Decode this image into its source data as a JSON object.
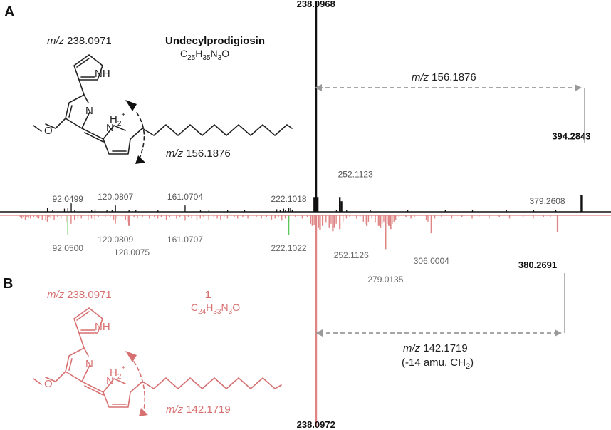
{
  "colors": {
    "top": "#111111",
    "bottom": "#e08585",
    "match": "#5cc65c",
    "guide": "#9a9a9a",
    "red_text": "#d77070"
  },
  "panels": {
    "a": "A",
    "b": "B"
  },
  "compound_a": {
    "name": "Undecylprodigiosin",
    "formula_parts": {
      "c": "C",
      "c_n": "25",
      "h": "H",
      "h_n": "35",
      "n": "N",
      "n_n": "3",
      "o": "O"
    },
    "frag1": "238.0971",
    "frag2": "156.1876",
    "mz": "m/z"
  },
  "compound_b": {
    "name": "1",
    "formula_parts": {
      "c": "C",
      "c_n": "24",
      "h": "H",
      "h_n": "33",
      "n": "N",
      "n_n": "3",
      "o": "O"
    },
    "frag1": "238.0971",
    "frag2": "142.1719",
    "mz": "m/z"
  },
  "atoms": {
    "nh": "NH",
    "n": "N",
    "h2": "H",
    "h2_sub": "2",
    "plus": "+",
    "o": "O"
  },
  "annotations": {
    "top_loss_mz": "m/z",
    "top_loss": "156.1876",
    "bottom_loss_mz": "m/z",
    "bottom_loss": "142.1719",
    "bottom_loss_note_a": "(-14 amu, CH",
    "bottom_loss_note_sub": "2",
    "bottom_loss_note_b": ")"
  },
  "chart_data": {
    "type": "bar",
    "title": "",
    "xlabel": "",
    "ylabel": "",
    "x_unit": "m/z",
    "series": [
      {
        "name": "Undecylprodigiosin",
        "direction": "up",
        "peaks": [
          {
            "mz": 80.05,
            "rel": 2.0
          },
          {
            "mz": 83.1,
            "rel": 0.8
          },
          {
            "mz": 90.05,
            "rel": 1.5
          },
          {
            "mz": 92.0499,
            "rel": 2.0,
            "label": "92.0499"
          },
          {
            "mz": 94.06,
            "rel": 4.0
          },
          {
            "mz": 96.08,
            "rel": 1.0
          },
          {
            "mz": 106.07,
            "rel": 0.8
          },
          {
            "mz": 108.08,
            "rel": 1.2
          },
          {
            "mz": 115.05,
            "rel": 0.6
          },
          {
            "mz": 118.06,
            "rel": 0.9
          },
          {
            "mz": 120.0807,
            "rel": 3.0,
            "label": "120.0807"
          },
          {
            "mz": 128.06,
            "rel": 1.0
          },
          {
            "mz": 132.08,
            "rel": 0.6
          },
          {
            "mz": 145.09,
            "rel": 0.7
          },
          {
            "mz": 161.0704,
            "rel": 3.0,
            "label": "161.0704"
          },
          {
            "mz": 170.09,
            "rel": 0.8
          },
          {
            "mz": 175.08,
            "rel": 0.7
          },
          {
            "mz": 186.09,
            "rel": 0.5
          },
          {
            "mz": 196.09,
            "rel": 0.7
          },
          {
            "mz": 215.0,
            "rel": 1.2
          },
          {
            "mz": 217.0,
            "rel": 0.8
          },
          {
            "mz": 219.1,
            "rel": 1.5
          },
          {
            "mz": 220.1,
            "rel": 1.0
          },
          {
            "mz": 222.1018,
            "rel": 2.0,
            "label": "222.1018"
          },
          {
            "mz": 223.1,
            "rel": 1.8
          },
          {
            "mz": 224.1,
            "rel": 1.0
          },
          {
            "mz": 237.09,
            "rel": 7.0
          },
          {
            "mz": 238.0968,
            "rel": 100.0,
            "label": "238.0968"
          },
          {
            "mz": 239.1,
            "rel": 7.0
          },
          {
            "mz": 250.11,
            "rel": 1.0
          },
          {
            "mz": 252.1123,
            "rel": 7.0,
            "label": "252.1123"
          },
          {
            "mz": 253.11,
            "rel": 5.0
          },
          {
            "mz": 256.12,
            "rel": 0.8
          },
          {
            "mz": 270.1,
            "rel": 0.8
          },
          {
            "mz": 292.1,
            "rel": 0.7
          },
          {
            "mz": 314.2,
            "rel": 0.6
          },
          {
            "mz": 330.2,
            "rel": 0.5
          },
          {
            "mz": 350.2,
            "rel": 0.6
          },
          {
            "mz": 366.2,
            "rel": 0.5
          },
          {
            "mz": 379.2608,
            "rel": 1.0,
            "label": "379.2608"
          },
          {
            "mz": 394.2843,
            "rel": 8.0,
            "label": "394.2843"
          }
        ]
      },
      {
        "name": "1",
        "direction": "down",
        "peaks": [
          {
            "mz": 64.0,
            "rel": 1.0
          },
          {
            "mz": 65.0,
            "rel": 1.5
          },
          {
            "mz": 66.0,
            "rel": 0.8
          },
          {
            "mz": 67.0,
            "rel": 2.0
          },
          {
            "mz": 68.0,
            "rel": 1.0
          },
          {
            "mz": 69.0,
            "rel": 1.2
          },
          {
            "mz": 70.0,
            "rel": 1.5
          },
          {
            "mz": 72.0,
            "rel": 1.0
          },
          {
            "mz": 74.0,
            "rel": 1.2
          },
          {
            "mz": 75.0,
            "rel": 1.5
          },
          {
            "mz": 77.0,
            "rel": 2.0
          },
          {
            "mz": 79.0,
            "rel": 2.5
          },
          {
            "mz": 80.0,
            "rel": 3.0
          },
          {
            "mz": 81.0,
            "rel": 1.0
          },
          {
            "mz": 82.0,
            "rel": 1.5
          },
          {
            "mz": 84.0,
            "rel": 2.0
          },
          {
            "mz": 86.0,
            "rel": 1.0
          },
          {
            "mz": 88.0,
            "rel": 1.5
          },
          {
            "mz": 91.0,
            "rel": 3.0
          },
          {
            "mz": 92.05,
            "rel": 2.5,
            "label": "92.0500"
          },
          {
            "mz": 94.0,
            "rel": 4.0
          },
          {
            "mz": 96.0,
            "rel": 2.0
          },
          {
            "mz": 98.0,
            "rel": 1.5
          },
          {
            "mz": 100.0,
            "rel": 1.5
          },
          {
            "mz": 104.0,
            "rel": 2.0
          },
          {
            "mz": 106.0,
            "rel": 1.5
          },
          {
            "mz": 108.0,
            "rel": 2.0
          },
          {
            "mz": 110.0,
            "rel": 1.0
          },
          {
            "mz": 114.0,
            "rel": 1.0
          },
          {
            "mz": 117.0,
            "rel": 1.0
          },
          {
            "mz": 119.0,
            "rel": 2.0
          },
          {
            "mz": 120.0809,
            "rel": 4.0,
            "label": "120.0809"
          },
          {
            "mz": 121.0,
            "rel": 1.5
          },
          {
            "mz": 124.0,
            "rel": 1.0
          },
          {
            "mz": 126.0,
            "rel": 2.0
          },
          {
            "mz": 127.0,
            "rel": 3.0
          },
          {
            "mz": 128.0075,
            "rel": 5.0,
            "label": "128.0075"
          },
          {
            "mz": 131.0,
            "rel": 1.0
          },
          {
            "mz": 133.0,
            "rel": 1.5
          },
          {
            "mz": 136.0,
            "rel": 1.0
          },
          {
            "mz": 140.0,
            "rel": 1.5
          },
          {
            "mz": 143.0,
            "rel": 1.0
          },
          {
            "mz": 145.0,
            "rel": 1.5
          },
          {
            "mz": 147.0,
            "rel": 1.0
          },
          {
            "mz": 150.0,
            "rel": 2.0
          },
          {
            "mz": 152.0,
            "rel": 1.0
          },
          {
            "mz": 156.0,
            "rel": 1.5
          },
          {
            "mz": 158.0,
            "rel": 1.0
          },
          {
            "mz": 161.0707,
            "rel": 2.5,
            "label": "161.0707"
          },
          {
            "mz": 163.0,
            "rel": 1.0
          },
          {
            "mz": 165.0,
            "rel": 1.5
          },
          {
            "mz": 168.0,
            "rel": 2.0
          },
          {
            "mz": 170.0,
            "rel": 1.5
          },
          {
            "mz": 172.0,
            "rel": 1.0
          },
          {
            "mz": 175.0,
            "rel": 2.0
          },
          {
            "mz": 178.0,
            "rel": 1.0
          },
          {
            "mz": 180.0,
            "rel": 1.5
          },
          {
            "mz": 182.0,
            "rel": 2.0
          },
          {
            "mz": 184.0,
            "rel": 1.0
          },
          {
            "mz": 186.0,
            "rel": 1.5
          },
          {
            "mz": 190.0,
            "rel": 1.0
          },
          {
            "mz": 192.0,
            "rel": 1.5
          },
          {
            "mz": 195.0,
            "rel": 1.0
          },
          {
            "mz": 198.0,
            "rel": 1.5
          },
          {
            "mz": 203.0,
            "rel": 1.0
          },
          {
            "mz": 206.0,
            "rel": 1.5
          },
          {
            "mz": 209.0,
            "rel": 1.0
          },
          {
            "mz": 212.0,
            "rel": 2.0
          },
          {
            "mz": 214.0,
            "rel": 1.5
          },
          {
            "mz": 216.0,
            "rel": 1.0
          },
          {
            "mz": 218.0,
            "rel": 2.5
          },
          {
            "mz": 220.0,
            "rel": 1.5
          },
          {
            "mz": 222.1022,
            "rel": 3.0,
            "label": "222.1022"
          },
          {
            "mz": 226.0,
            "rel": 1.0
          },
          {
            "mz": 230.0,
            "rel": 1.5
          },
          {
            "mz": 233.0,
            "rel": 1.0
          },
          {
            "mz": 235.0,
            "rel": 4.0
          },
          {
            "mz": 236.0,
            "rel": 5.0
          },
          {
            "mz": 237.0,
            "rel": 4.5
          },
          {
            "mz": 238.0972,
            "rel": 100.0,
            "label": "238.0972"
          },
          {
            "mz": 239.5,
            "rel": 6.0
          },
          {
            "mz": 240.5,
            "rel": 7.0
          },
          {
            "mz": 242.0,
            "rel": 5.0
          },
          {
            "mz": 244.0,
            "rel": 3.5
          },
          {
            "mz": 246.0,
            "rel": 6.0
          },
          {
            "mz": 247.0,
            "rel": 4.0
          },
          {
            "mz": 248.0,
            "rel": 7.5
          },
          {
            "mz": 249.0,
            "rel": 6.0
          },
          {
            "mz": 250.0,
            "rel": 4.0
          },
          {
            "mz": 252.1126,
            "rel": 6.5,
            "label": "252.1126"
          },
          {
            "mz": 254.0,
            "rel": 3.0
          },
          {
            "mz": 256.0,
            "rel": 1.5
          },
          {
            "mz": 258.0,
            "rel": 1.0
          },
          {
            "mz": 262.0,
            "rel": 1.5
          },
          {
            "mz": 264.0,
            "rel": 1.0
          },
          {
            "mz": 266.0,
            "rel": 3.0
          },
          {
            "mz": 267.0,
            "rel": 4.0
          },
          {
            "mz": 268.0,
            "rel": 5.0
          },
          {
            "mz": 269.0,
            "rel": 3.0
          },
          {
            "mz": 271.0,
            "rel": 1.5
          },
          {
            "mz": 273.0,
            "rel": 3.5
          },
          {
            "mz": 275.0,
            "rel": 5.0
          },
          {
            "mz": 276.0,
            "rel": 6.0
          },
          {
            "mz": 277.0,
            "rel": 4.0
          },
          {
            "mz": 278.0,
            "rel": 3.0
          },
          {
            "mz": 279.0135,
            "rel": 16.0,
            "label": "279.0135"
          },
          {
            "mz": 280.0,
            "rel": 4.0
          },
          {
            "mz": 281.0,
            "rel": 5.0
          },
          {
            "mz": 282.0,
            "rel": 6.5
          },
          {
            "mz": 283.0,
            "rel": 4.0
          },
          {
            "mz": 284.0,
            "rel": 3.0
          },
          {
            "mz": 285.0,
            "rel": 2.0
          },
          {
            "mz": 287.0,
            "rel": 1.0
          },
          {
            "mz": 291.0,
            "rel": 1.0
          },
          {
            "mz": 294.0,
            "rel": 1.5
          },
          {
            "mz": 296.0,
            "rel": 1.0
          },
          {
            "mz": 303.0,
            "rel": 2.0
          },
          {
            "mz": 304.0,
            "rel": 3.0
          },
          {
            "mz": 306.0004,
            "rel": 8.5,
            "label": "306.0004"
          },
          {
            "mz": 308.0,
            "rel": 1.5
          },
          {
            "mz": 312.0,
            "rel": 1.0
          },
          {
            "mz": 318.0,
            "rel": 1.5
          },
          {
            "mz": 324.0,
            "rel": 1.0
          },
          {
            "mz": 330.0,
            "rel": 1.5
          },
          {
            "mz": 334.0,
            "rel": 1.0
          },
          {
            "mz": 340.0,
            "rel": 1.5
          },
          {
            "mz": 346.0,
            "rel": 1.0
          },
          {
            "mz": 352.0,
            "rel": 1.5
          },
          {
            "mz": 360.0,
            "rel": 1.0
          },
          {
            "mz": 366.0,
            "rel": 1.5
          },
          {
            "mz": 372.0,
            "rel": 1.0
          },
          {
            "mz": 376.0,
            "rel": 1.0
          },
          {
            "mz": 380.2691,
            "rel": 8.0,
            "label": "380.2691"
          }
        ]
      }
    ],
    "matched_peaks": [
      92.05,
      222.102
    ],
    "xlim": [
      58,
      405
    ],
    "ylim": [
      0,
      100
    ],
    "axis": false,
    "grid": false,
    "legend": "none"
  }
}
